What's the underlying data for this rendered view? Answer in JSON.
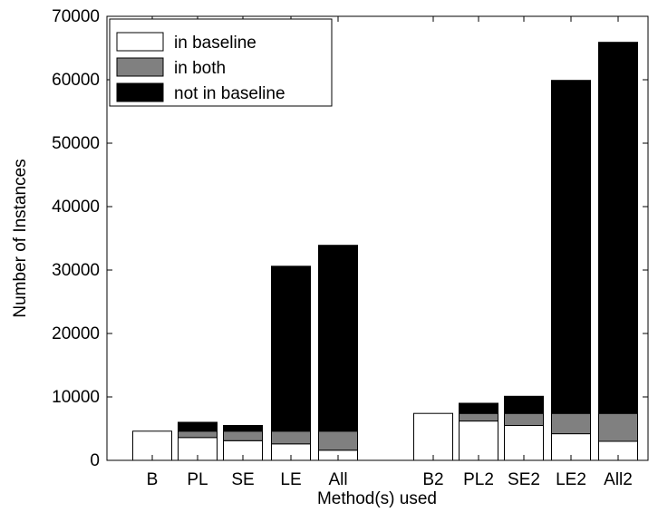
{
  "chart_data": {
    "type": "bar",
    "stacked": true,
    "title": "",
    "xlabel": "Method(s) used",
    "ylabel": "Number of Instances",
    "ylim": [
      0,
      70000
    ],
    "yticks": [
      "0",
      "10000",
      "20000",
      "30000",
      "40000",
      "50000",
      "60000",
      "70000"
    ],
    "categories": [
      "B",
      "PL",
      "SE",
      "LE",
      "All",
      "B2",
      "PL2",
      "SE2",
      "LE2",
      "All2"
    ],
    "series": [
      {
        "name": "in baseline",
        "color": "#ffffff",
        "values": [
          4600,
          3600,
          3100,
          2600,
          1600,
          7400,
          6200,
          5500,
          4200,
          3000
        ]
      },
      {
        "name": "in both",
        "color": "#808080",
        "values": [
          0,
          1000,
          1500,
          2000,
          3000,
          0,
          1200,
          1900,
          3200,
          4400
        ]
      },
      {
        "name": "not in baseline",
        "color": "#000000",
        "values": [
          0,
          1400,
          900,
          26000,
          29300,
          0,
          1600,
          2700,
          52500,
          58500
        ]
      }
    ],
    "legend_position": "top-left",
    "grid": false
  }
}
